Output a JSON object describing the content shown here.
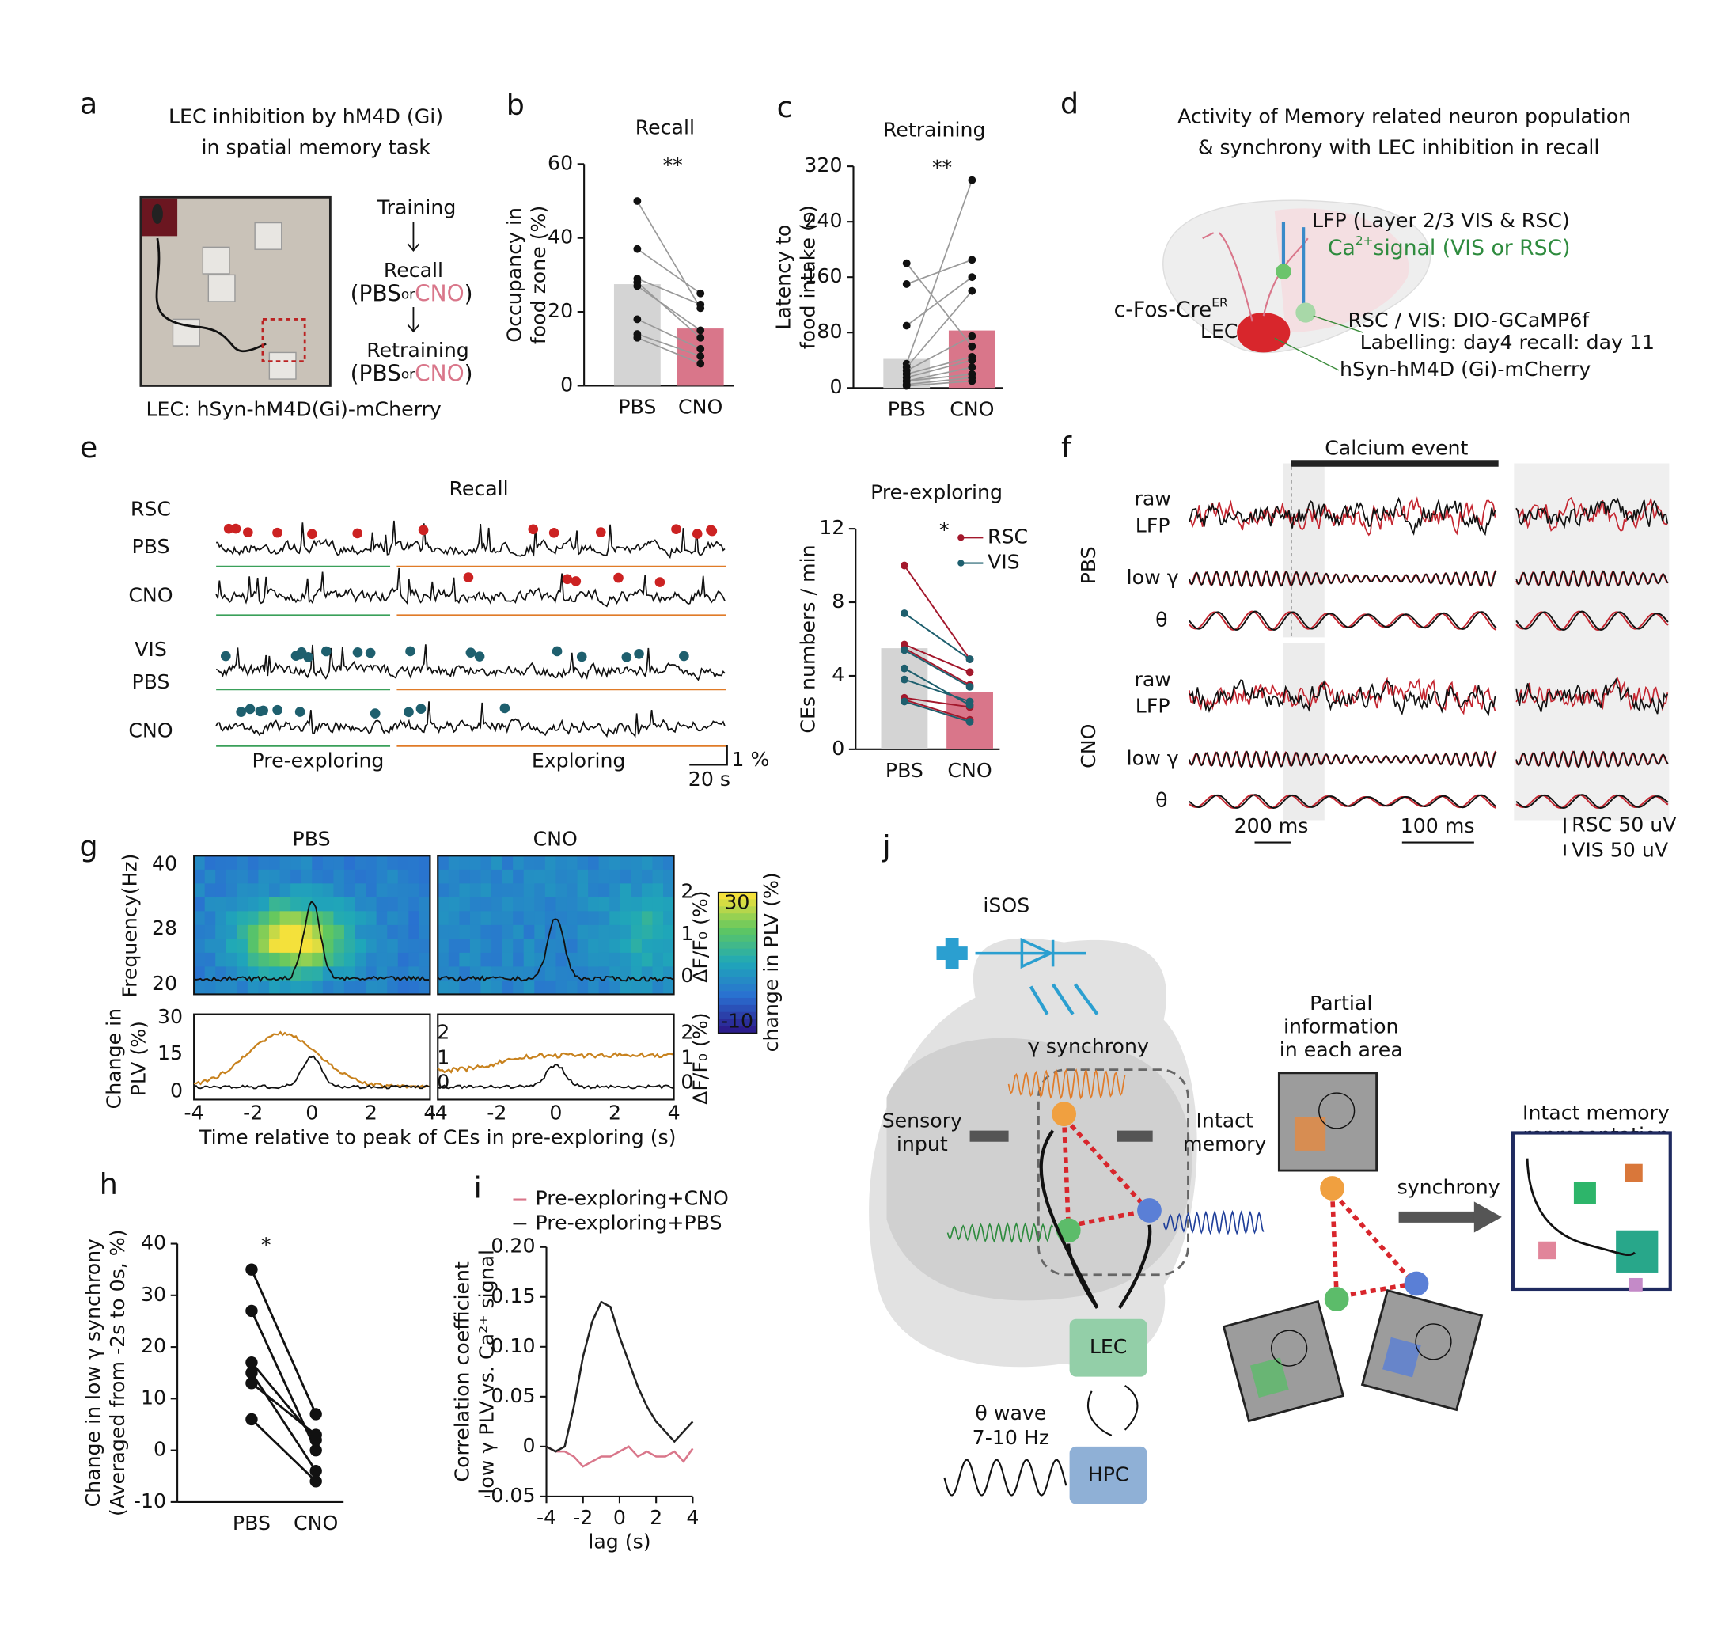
{
  "chart_data": [
    {
      "type": "bar",
      "label": "b",
      "title": "Recall",
      "ylabel": [
        "Occupancy in",
        "food zone (%)"
      ],
      "annotation": "**",
      "categories": [
        "PBS",
        "CNO"
      ],
      "values": [
        27.5,
        15.5
      ],
      "color": [
        "#d4d4d4",
        "#d9768a"
      ],
      "ylim": [
        0,
        60
      ],
      "yticks": [
        0,
        20,
        40,
        60
      ],
      "pairs": [
        [
          50,
          21
        ],
        [
          37,
          25
        ],
        [
          29,
          22
        ],
        [
          28,
          13
        ],
        [
          27,
          15
        ],
        [
          18,
          10
        ],
        [
          14,
          8
        ],
        [
          13,
          6
        ]
      ]
    },
    {
      "type": "bar",
      "label": "c",
      "title": "Retraining",
      "ylabel": [
        "Latency to",
        "food intake (s)"
      ],
      "annotation": "**",
      "categories": [
        "PBS",
        "CNO"
      ],
      "values": [
        42,
        83
      ],
      "color": [
        "#d4d4d4",
        "#d9768a"
      ],
      "ylim": [
        0,
        320
      ],
      "yticks": [
        0,
        80,
        160,
        240,
        320
      ],
      "pairs": [
        [
          180,
          60
        ],
        [
          150,
          185
        ],
        [
          90,
          160
        ],
        [
          35,
          300
        ],
        [
          30,
          140
        ],
        [
          25,
          75
        ],
        [
          20,
          45
        ],
        [
          15,
          40
        ],
        [
          10,
          30
        ],
        [
          10,
          20
        ],
        [
          5,
          15
        ],
        [
          3,
          10
        ]
      ]
    },
    {
      "type": "bar",
      "title": "Pre-exploring",
      "ylabel": "CEs numbers / min",
      "annotation": "*",
      "categories": [
        "PBS",
        "CNO"
      ],
      "values": [
        5.5,
        3.1
      ],
      "color": [
        "#d4d4d4",
        "#d9768a"
      ],
      "ylim": [
        0,
        12
      ],
      "yticks": [
        0,
        4,
        8,
        12
      ],
      "series": [
        {
          "name": "RSC",
          "color": "#a3182c",
          "pairs": [
            [
              10,
              4.9
            ],
            [
              5.7,
              4.2
            ],
            [
              5.5,
              3.5
            ],
            [
              2.8,
              2.3
            ],
            [
              2.7,
              1.6
            ]
          ]
        },
        {
          "name": "VIS",
          "color": "#1e5f6e",
          "pairs": [
            [
              7.4,
              4.9
            ],
            [
              5.4,
              3.4
            ],
            [
              3.8,
              2.6
            ],
            [
              4.4,
              2.4
            ],
            [
              2.6,
              1.5
            ]
          ]
        }
      ]
    },
    {
      "type": "pair",
      "label": "h",
      "ylabel": [
        "Change in low γ synchrony",
        "(Averaged from -2s to 0s, %)"
      ],
      "annotation": "*",
      "categories": [
        "PBS",
        "CNO"
      ],
      "ylim": [
        -10,
        40
      ],
      "yticks": [
        -10,
        0,
        10,
        20,
        30,
        40
      ],
      "pairs": [
        [
          35,
          7
        ],
        [
          27,
          0
        ],
        [
          17,
          2
        ],
        [
          15,
          -4
        ],
        [
          13,
          3
        ],
        [
          6,
          -6
        ]
      ]
    },
    {
      "type": "line",
      "label": "i",
      "ylabel": [
        "Correlation coefficient",
        "low γ PLV vs. Ca²⁺ signal"
      ],
      "xlabel": "lag (s)",
      "x": [
        -4,
        -3.5,
        -3,
        -2.5,
        -2,
        -1.5,
        -1,
        -0.5,
        0,
        0.5,
        1,
        1.5,
        2,
        2.5,
        3,
        3.5,
        4
      ],
      "xlim": [
        -4,
        4
      ],
      "xticks": [
        -4,
        -2,
        0,
        2,
        4
      ],
      "ylim": [
        -0.05,
        0.2
      ],
      "yticks": [
        -0.05,
        0,
        0.05,
        {
          "value": 0.1,
          "label": "0.10"
        },
        0.15,
        {
          "value": 0.2,
          "label": "0.20"
        }
      ],
      "series": [
        {
          "name": "Pre-exploring+CNO",
          "color": "#d9768a",
          "values": [
            0,
            -0.005,
            -0.005,
            -0.01,
            -0.02,
            -0.015,
            -0.01,
            -0.01,
            -0.005,
            0,
            -0.01,
            -0.005,
            -0.01,
            -0.01,
            -0.005,
            -0.015,
            -0.002
          ]
        },
        {
          "name": "Pre-exploring+PBS",
          "color": "#222222",
          "values": [
            0,
            -0.005,
            0,
            0.04,
            0.09,
            0.125,
            0.145,
            0.14,
            0.11,
            0.085,
            0.06,
            0.04,
            0.025,
            0.015,
            0.005,
            0.015,
            0.025
          ]
        }
      ]
    }
  ],
  "panels": {
    "a": {
      "letter": "a",
      "title": [
        "LEC inhibition by hM4D (Gi)",
        "in spatial memory task"
      ],
      "flow": [
        "Training",
        "Recall",
        "Retraining"
      ],
      "condition": [
        "(PBS",
        "or",
        "CNO",
        ")"
      ],
      "footnote": "LEC: hSyn-hM4D(Gi)-mCherry"
    },
    "d": {
      "letter": "d",
      "title": [
        "Activity of Memory related neuron population",
        "& synchrony with LEC inhibition in recall"
      ],
      "lfp": "LFP (Layer 2/3 VIS & RSC)",
      "ca_signal": [
        "Ca",
        "2+",
        "signal (VIS or RSC)"
      ],
      "cre": [
        "c-Fos-Cre",
        "ER"
      ],
      "lec": "LEC",
      "gcamp": "RSC  / VIS: DIO-GCaMP6f",
      "labelling": "Labelling: day4 recall: day 11",
      "hm4d": "hSyn-hM4D (Gi)-mCherry"
    },
    "e": {
      "letter": "e",
      "title": "Recall",
      "rows": [
        "RSC",
        "PBS",
        "CNO",
        "VIS",
        "PBS",
        "CNO"
      ],
      "phases": [
        "Pre-exploring",
        "Exploring"
      ],
      "scale": [
        "1 %",
        "20 s"
      ]
    },
    "f": {
      "letter": "f",
      "event": "Calcium event",
      "groups": [
        "PBS",
        "CNO"
      ],
      "rows": [
        "raw",
        "LFP",
        "low γ",
        "θ"
      ],
      "scale": [
        "200 ms",
        "100 ms"
      ],
      "amp": [
        "RSC 50  uV",
        "VIS  50 uV"
      ]
    },
    "g": {
      "letter": "g",
      "groups": [
        "PBS",
        "CNO"
      ],
      "ylabel": "Frequency(Hz)",
      "freq_ticks": [
        "40",
        "28",
        "20"
      ],
      "df_label": "ΔF/F₀ (%)",
      "df_ticks": [
        "2",
        "1",
        "0"
      ],
      "colorbar_ticks": [
        "30",
        "-10"
      ],
      "colorbar_label": "change in PLV (%)",
      "plv_label": [
        "Change in",
        "PLV (%)"
      ],
      "plv_ticks": [
        "30",
        "15",
        "0"
      ],
      "time_ticks": [
        "-4",
        "-2",
        "0",
        "2",
        "4"
      ],
      "xlabel": "Time relative to peak of CEs in pre-exploring (s)"
    },
    "j": {
      "letter": "j",
      "isos": "iSOS",
      "gamma": "γ synchrony",
      "sensory": [
        "Sensory",
        "input"
      ],
      "intact": [
        "Intact",
        "memory"
      ],
      "partial": [
        "Partial",
        "information",
        "in each area"
      ],
      "lec": "LEC",
      "theta": [
        "θ wave",
        "7-10 Hz"
      ],
      "hpc": "HPC",
      "synchrony": "synchrony",
      "representation": [
        "Intact memory",
        "representation"
      ]
    }
  }
}
